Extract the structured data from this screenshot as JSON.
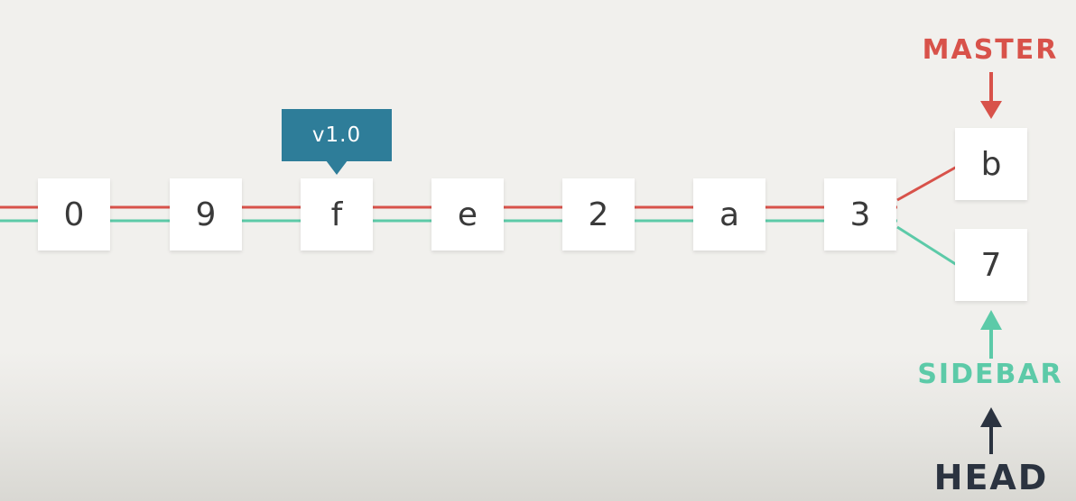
{
  "colors": {
    "master": "#d8524a",
    "sidebar": "#5ccaa8",
    "head": "#2b3340",
    "tag": "#2e7d99",
    "background": "#f1f0ed",
    "commit_box": "#ffffff",
    "commit_text": "#3a3a3a"
  },
  "commits": [
    "0",
    "9",
    "f",
    "e",
    "2",
    "a",
    "3"
  ],
  "branch_commits": {
    "master_tip": "b",
    "sidebar_tip": "7"
  },
  "tag": {
    "label": "v1.0",
    "commit": "f"
  },
  "labels": {
    "master": "MASTER",
    "sidebar": "SIDEBAR",
    "head": "HEAD"
  },
  "arrows": {
    "master": "arrow-down-icon",
    "sidebar": "arrow-up-icon",
    "head": "arrow-up-icon"
  }
}
